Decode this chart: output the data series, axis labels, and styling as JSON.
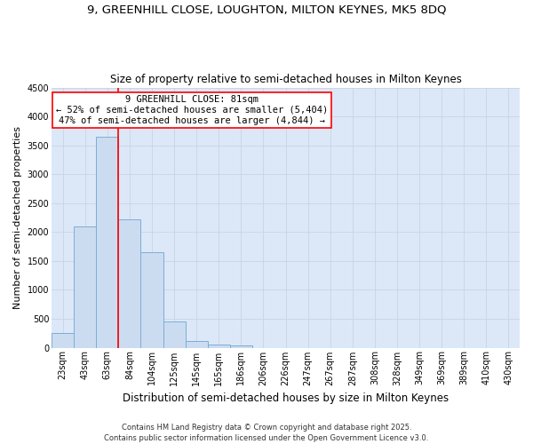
{
  "title_line1": "9, GREENHILL CLOSE, LOUGHTON, MILTON KEYNES, MK5 8DQ",
  "title_line2": "Size of property relative to semi-detached houses in Milton Keynes",
  "xlabel": "Distribution of semi-detached houses by size in Milton Keynes",
  "ylabel": "Number of semi-detached properties",
  "footnote": "Contains HM Land Registry data © Crown copyright and database right 2025.\nContains public sector information licensed under the Open Government Licence v3.0.",
  "categories": [
    "23sqm",
    "43sqm",
    "63sqm",
    "84sqm",
    "104sqm",
    "125sqm",
    "145sqm",
    "165sqm",
    "186sqm",
    "206sqm",
    "226sqm",
    "247sqm",
    "267sqm",
    "287sqm",
    "308sqm",
    "328sqm",
    "349sqm",
    "369sqm",
    "389sqm",
    "410sqm",
    "430sqm"
  ],
  "values": [
    250,
    2100,
    3650,
    2220,
    1650,
    450,
    110,
    60,
    45,
    0,
    0,
    0,
    0,
    0,
    0,
    0,
    0,
    0,
    0,
    0,
    0
  ],
  "bar_color": "#ccdcf0",
  "bar_edge_color": "#7aaed6",
  "grid_color": "#c8d4e4",
  "plot_bg_color": "#dce8f8",
  "fig_bg_color": "#ffffff",
  "vline_color": "red",
  "vline_x_index": 2.5,
  "property_label": "9 GREENHILL CLOSE: 81sqm",
  "smaller_pct": "52% of semi-detached houses are smaller (5,404)",
  "larger_pct": "47% of semi-detached houses are larger (4,844)",
  "annotation_box_color": "red",
  "ylim": [
    0,
    4500
  ],
  "yticks": [
    0,
    500,
    1000,
    1500,
    2000,
    2500,
    3000,
    3500,
    4000,
    4500
  ],
  "title_fontsize": 9.5,
  "subtitle_fontsize": 8.5,
  "ylabel_fontsize": 8,
  "xlabel_fontsize": 8.5,
  "tick_fontsize": 7,
  "annotation_fontsize": 7.5,
  "footnote_fontsize": 6
}
